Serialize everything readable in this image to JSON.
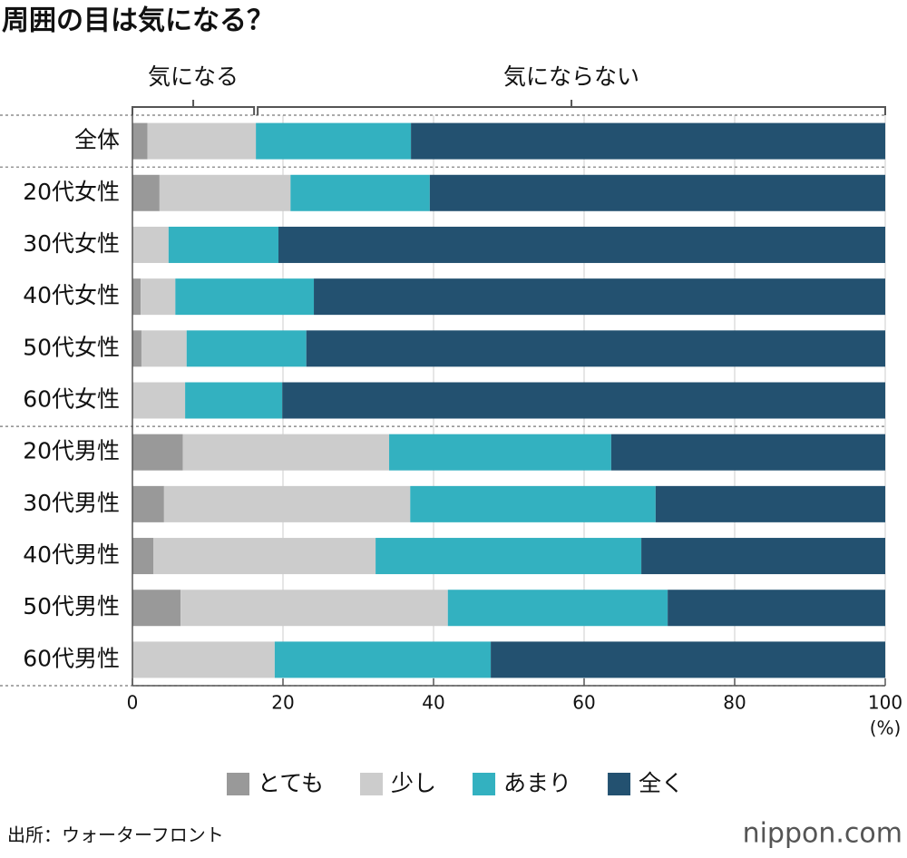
{
  "chart_data": {
    "type": "stacked-bar-horizontal",
    "title": "周囲の目は気になる？",
    "brackets": [
      "気になる",
      "気にならない"
    ],
    "categories": [
      "全体",
      "20代女性",
      "30代女性",
      "40代女性",
      "50代女性",
      "60代女性",
      "20代男性",
      "30代男性",
      "40代男性",
      "50代男性",
      "60代男性"
    ],
    "series": [
      {
        "name": "とても",
        "color": "#999999",
        "values": [
          2.0,
          3.6,
          0,
          1.1,
          1.2,
          0,
          6.7,
          4.2,
          2.8,
          6.4,
          0
        ]
      },
      {
        "name": "少し",
        "color": "#cccccc",
        "values": [
          14.4,
          17.4,
          4.8,
          4.6,
          6.0,
          7.0,
          27.4,
          32.7,
          29.5,
          35.5,
          18.9
        ]
      },
      {
        "name": "あまり",
        "color": "#33b1c0",
        "values": [
          20.6,
          18.5,
          14.6,
          18.4,
          15.9,
          12.9,
          29.5,
          32.6,
          35.3,
          29.2,
          28.7
        ]
      },
      {
        "name": "全く",
        "color": "#235170",
        "values": [
          63.0,
          60.5,
          80.6,
          75.9,
          76.9,
          80.1,
          36.4,
          30.5,
          32.4,
          28.9,
          52.4
        ]
      }
    ],
    "xlim": [
      0,
      100
    ],
    "xticks": [
      0,
      20,
      40,
      60,
      80,
      100
    ],
    "x_unit": "(%)",
    "grid": true,
    "source": "出所：ウォーターフロント",
    "logo": "nippon.com"
  }
}
